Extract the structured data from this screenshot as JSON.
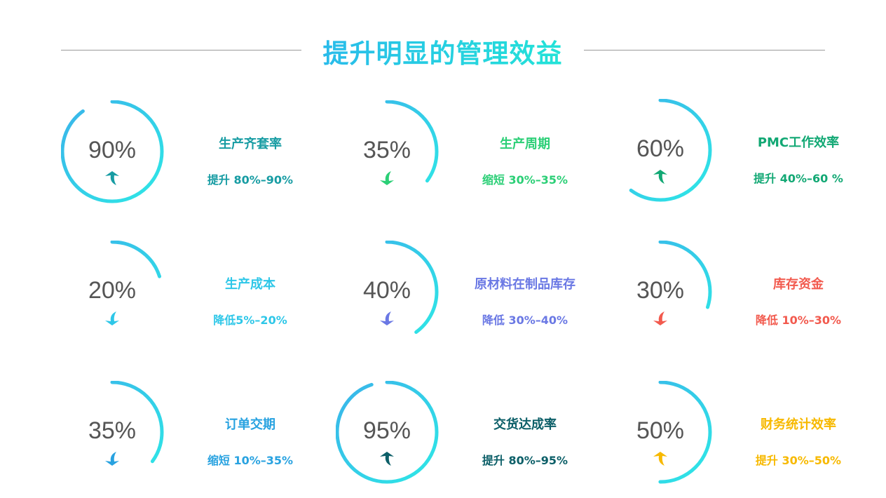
{
  "title": "提升明显的管理效益",
  "gradient": {
    "start": "#2ee8e6",
    "end": "#3ab3ea"
  },
  "metrics": [
    {
      "value": 90,
      "label": "90%",
      "name": "生产齐套率",
      "desc": "提升 80%–90%",
      "direction": "up",
      "color": "#179ca3"
    },
    {
      "value": 35,
      "label": "35%",
      "name": "生产周期",
      "desc": "缩短 30%–35%",
      "direction": "down",
      "color": "#2bcf76"
    },
    {
      "value": 60,
      "label": "60%",
      "name": "PMC工作效率",
      "desc": "提升 40%–60 %",
      "direction": "up",
      "color": "#12a874"
    },
    {
      "value": 20,
      "label": "20%",
      "name": "生产成本",
      "desc": "降低5%–20%",
      "direction": "down",
      "color": "#2ec7e8"
    },
    {
      "value": 40,
      "label": "40%",
      "name": "原材料在制品库存",
      "desc": "降低 30%–40%",
      "direction": "down",
      "color": "#6a78e4"
    },
    {
      "value": 30,
      "label": "30%",
      "name": "库存资金",
      "desc": "降低 10%–30%",
      "direction": "down",
      "color": "#f25a4e"
    },
    {
      "value": 35,
      "label": "35%",
      "name": "订单交期",
      "desc": "缩短 10%–35%",
      "direction": "down",
      "color": "#28a2e0"
    },
    {
      "value": 95,
      "label": "95%",
      "name": "交货达成率",
      "desc": "提升 80%–95%",
      "direction": "up",
      "color": "#0c5f68"
    },
    {
      "value": 50,
      "label": "50%",
      "name": "财务统计效率",
      "desc": "提升 30%–50%",
      "direction": "up",
      "color": "#f7b900"
    }
  ]
}
